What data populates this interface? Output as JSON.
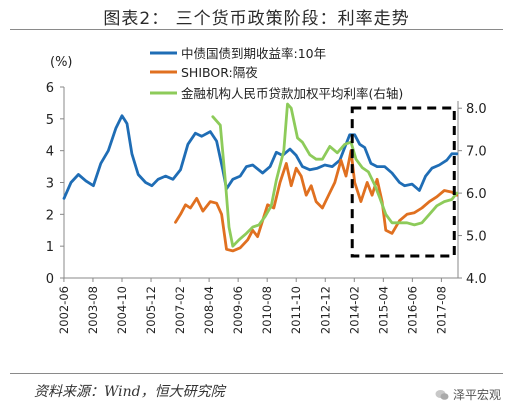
{
  "title": "图表2：  三个货币政策阶段：利率走势",
  "source": "资料来源：Wind，恒大研究院",
  "watermark": "泽平宏观",
  "chart_data": {
    "type": "line",
    "y_left_label": "(%)",
    "y_left_ticks": [
      "0",
      "1",
      "2",
      "3",
      "4",
      "5",
      "6"
    ],
    "y_left_lim": [
      0,
      6
    ],
    "y_right_ticks": [
      "4.0",
      "5.0",
      "6.0",
      "7.0",
      "8.0"
    ],
    "y_right_lim": [
      4.0,
      8.5
    ],
    "x_tick_labels": [
      "2002-06",
      "2003-08",
      "2004-10",
      "2005-12",
      "2007-02",
      "2008-04",
      "2009-06",
      "2010-08",
      "2011-10",
      "2012-12",
      "2014-02",
      "2015-04",
      "2016-06",
      "2017-08"
    ],
    "x_range": [
      2002.42,
      2018.25
    ],
    "grid": false,
    "legend_position": "top",
    "annotation": "dashed box 2014-01 to 2018-02",
    "series": [
      {
        "name": "中债国债到期收益率:10年",
        "axis": "left",
        "color": "#1F6DB5",
        "points": [
          [
            2002.42,
            2.5
          ],
          [
            2002.7,
            3.0
          ],
          [
            2003.0,
            3.25
          ],
          [
            2003.3,
            3.05
          ],
          [
            2003.6,
            2.9
          ],
          [
            2003.9,
            3.6
          ],
          [
            2004.2,
            4.0
          ],
          [
            2004.5,
            4.7
          ],
          [
            2004.75,
            5.1
          ],
          [
            2004.95,
            4.85
          ],
          [
            2005.15,
            3.9
          ],
          [
            2005.4,
            3.25
          ],
          [
            2005.7,
            3.0
          ],
          [
            2005.95,
            2.9
          ],
          [
            2006.2,
            3.1
          ],
          [
            2006.5,
            3.2
          ],
          [
            2006.8,
            3.1
          ],
          [
            2007.1,
            3.4
          ],
          [
            2007.4,
            4.2
          ],
          [
            2007.7,
            4.55
          ],
          [
            2007.95,
            4.45
          ],
          [
            2008.3,
            4.6
          ],
          [
            2008.55,
            4.3
          ],
          [
            2008.8,
            3.4
          ],
          [
            2008.95,
            2.8
          ],
          [
            2009.2,
            3.1
          ],
          [
            2009.5,
            3.2
          ],
          [
            2009.75,
            3.5
          ],
          [
            2010.0,
            3.55
          ],
          [
            2010.4,
            3.3
          ],
          [
            2010.7,
            3.5
          ],
          [
            2010.95,
            3.95
          ],
          [
            2011.2,
            3.85
          ],
          [
            2011.5,
            4.05
          ],
          [
            2011.75,
            3.85
          ],
          [
            2012.0,
            3.5
          ],
          [
            2012.3,
            3.4
          ],
          [
            2012.6,
            3.45
          ],
          [
            2012.9,
            3.55
          ],
          [
            2013.2,
            3.5
          ],
          [
            2013.5,
            3.7
          ],
          [
            2013.9,
            4.5
          ],
          [
            2014.1,
            4.5
          ],
          [
            2014.3,
            4.2
          ],
          [
            2014.5,
            4.1
          ],
          [
            2014.75,
            3.6
          ],
          [
            2015.0,
            3.5
          ],
          [
            2015.3,
            3.5
          ],
          [
            2015.6,
            3.3
          ],
          [
            2015.9,
            3.0
          ],
          [
            2016.1,
            2.9
          ],
          [
            2016.4,
            2.95
          ],
          [
            2016.7,
            2.75
          ],
          [
            2016.95,
            3.2
          ],
          [
            2017.2,
            3.45
          ],
          [
            2017.5,
            3.55
          ],
          [
            2017.8,
            3.7
          ],
          [
            2018.0,
            3.9
          ],
          [
            2018.2,
            3.9
          ]
        ]
      },
      {
        "name": "SHIBOR:隔夜",
        "axis": "left",
        "color": "#E07020",
        "points": [
          [
            2006.9,
            1.75
          ],
          [
            2007.1,
            2.0
          ],
          [
            2007.3,
            2.3
          ],
          [
            2007.5,
            2.2
          ],
          [
            2007.75,
            2.5
          ],
          [
            2008.0,
            2.1
          ],
          [
            2008.3,
            2.4
          ],
          [
            2008.55,
            2.35
          ],
          [
            2008.75,
            2.0
          ],
          [
            2008.95,
            0.9
          ],
          [
            2009.2,
            0.85
          ],
          [
            2009.5,
            0.95
          ],
          [
            2009.8,
            1.2
          ],
          [
            2010.0,
            1.5
          ],
          [
            2010.2,
            1.3
          ],
          [
            2010.4,
            1.8
          ],
          [
            2010.6,
            2.3
          ],
          [
            2010.85,
            2.2
          ],
          [
            2011.1,
            3.0
          ],
          [
            2011.35,
            3.6
          ],
          [
            2011.55,
            2.9
          ],
          [
            2011.75,
            3.45
          ],
          [
            2011.95,
            3.2
          ],
          [
            2012.15,
            2.6
          ],
          [
            2012.35,
            2.9
          ],
          [
            2012.55,
            2.4
          ],
          [
            2012.8,
            2.2
          ],
          [
            2013.05,
            2.6
          ],
          [
            2013.3,
            3.0
          ],
          [
            2013.55,
            3.7
          ],
          [
            2013.75,
            3.2
          ],
          [
            2013.95,
            4.0
          ],
          [
            2014.1,
            3.0
          ],
          [
            2014.35,
            2.4
          ],
          [
            2014.6,
            3.0
          ],
          [
            2014.8,
            2.6
          ],
          [
            2015.0,
            3.1
          ],
          [
            2015.2,
            2.4
          ],
          [
            2015.35,
            1.5
          ],
          [
            2015.6,
            1.4
          ],
          [
            2015.9,
            1.8
          ],
          [
            2016.2,
            2.0
          ],
          [
            2016.5,
            2.05
          ],
          [
            2016.8,
            2.2
          ],
          [
            2017.1,
            2.4
          ],
          [
            2017.4,
            2.55
          ],
          [
            2017.7,
            2.75
          ],
          [
            2018.0,
            2.7
          ],
          [
            2018.2,
            2.6
          ]
        ]
      },
      {
        "name": "金融机构人民币贷款加权平均利率(右轴)",
        "axis": "right",
        "color": "#8DCB5A",
        "points": [
          [
            2008.4,
            7.8
          ],
          [
            2008.7,
            7.6
          ],
          [
            2008.9,
            6.3
          ],
          [
            2009.05,
            5.2
          ],
          [
            2009.2,
            4.75
          ],
          [
            2009.45,
            4.9
          ],
          [
            2009.75,
            5.05
          ],
          [
            2010.0,
            5.2
          ],
          [
            2010.25,
            5.25
          ],
          [
            2010.5,
            5.45
          ],
          [
            2010.75,
            5.7
          ],
          [
            2010.95,
            6.3
          ],
          [
            2011.25,
            7.0
          ],
          [
            2011.4,
            8.1
          ],
          [
            2011.55,
            8.0
          ],
          [
            2011.8,
            7.3
          ],
          [
            2012.0,
            7.2
          ],
          [
            2012.3,
            6.9
          ],
          [
            2012.55,
            6.8
          ],
          [
            2012.8,
            6.8
          ],
          [
            2013.1,
            7.1
          ],
          [
            2013.4,
            6.95
          ],
          [
            2013.7,
            7.15
          ],
          [
            2013.95,
            7.2
          ],
          [
            2014.15,
            6.8
          ],
          [
            2014.4,
            6.6
          ],
          [
            2014.65,
            6.5
          ],
          [
            2014.9,
            6.2
          ],
          [
            2015.1,
            5.9
          ],
          [
            2015.35,
            5.5
          ],
          [
            2015.6,
            5.3
          ],
          [
            2015.9,
            5.3
          ],
          [
            2016.2,
            5.3
          ],
          [
            2016.5,
            5.25
          ],
          [
            2016.8,
            5.3
          ],
          [
            2017.1,
            5.5
          ],
          [
            2017.4,
            5.7
          ],
          [
            2017.7,
            5.8
          ],
          [
            2018.0,
            5.85
          ],
          [
            2018.2,
            6.0
          ]
        ]
      }
    ]
  }
}
